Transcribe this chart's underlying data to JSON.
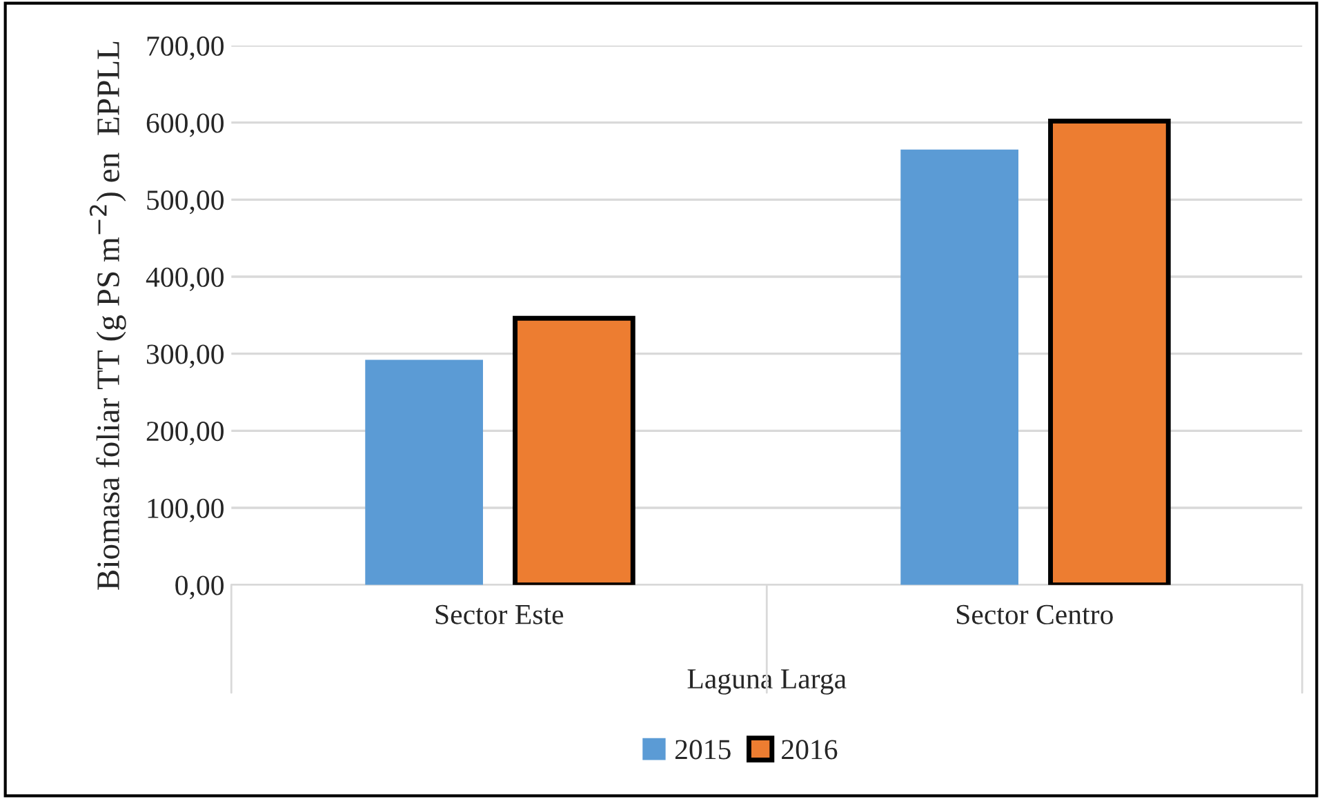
{
  "chart_data": {
    "type": "bar",
    "ylabel": "Biomasa foliar TT (g PS m$^{−2}$) en  EPPLL",
    "xlabel": "Laguna Larga",
    "categories": [
      "Sector Este",
      "Sector Centro"
    ],
    "series": [
      {
        "name": "2015",
        "color": "#5b9bd5",
        "values": [
          292,
          565
        ]
      },
      {
        "name": "2016",
        "color": "#ed7d31",
        "values": [
          346,
          602
        ]
      }
    ],
    "ylim": [
      0,
      700
    ],
    "yticks": [
      {
        "value": 0,
        "label": "0,00"
      },
      {
        "value": 100,
        "label": "100,00"
      },
      {
        "value": 200,
        "label": "200,00"
      },
      {
        "value": 300,
        "label": "300,00"
      },
      {
        "value": 400,
        "label": "400,00"
      },
      {
        "value": 500,
        "label": "500,00"
      },
      {
        "value": 600,
        "label": "600,00"
      },
      {
        "value": 700,
        "label": "700,00"
      }
    ],
    "grid": "y",
    "legend": "bottom"
  }
}
